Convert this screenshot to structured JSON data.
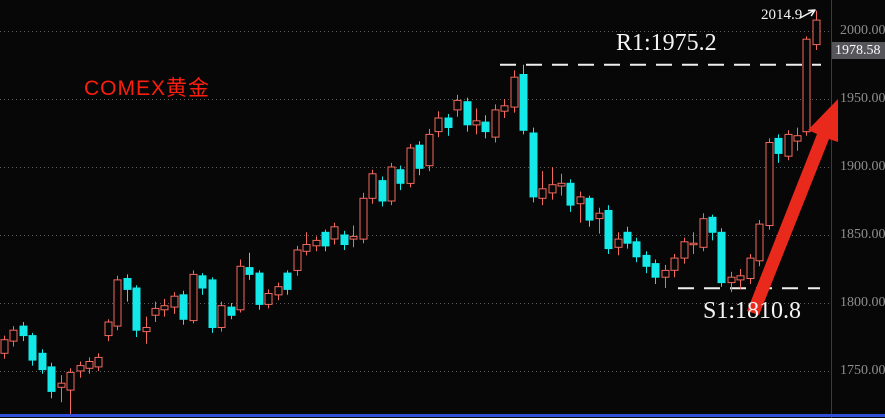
{
  "title": {
    "text": "COMEX黄金"
  },
  "axis": {
    "labels": [
      {
        "text": "2000.00",
        "value": 2000
      },
      {
        "text": "1950.00",
        "value": 1950
      },
      {
        "text": "1900.00",
        "value": 1900
      },
      {
        "text": "1850.00",
        "value": 1850
      },
      {
        "text": "1800.00",
        "value": 1800
      },
      {
        "text": "1750.00",
        "value": 1750
      }
    ],
    "current_price": {
      "text": "1978.58",
      "value": 1978.58
    }
  },
  "annotations": {
    "resistance": {
      "label": "R1:1975.2",
      "value": 1975.2
    },
    "support": {
      "label": "S1:1810.8",
      "value": 1810.8
    },
    "peak": {
      "label": "2014.9",
      "value": 2014.9
    }
  },
  "colors": {
    "background": "#070707",
    "grid": "#5e5e5e",
    "axis_border": "#3a3a3a",
    "axis_text": "#8e8e8e",
    "badge_bg": "#56565a",
    "annotation_text": "#f2f2f2",
    "dashed_level": "#efefef",
    "title_red": "#fb1d0e",
    "arrow_red": "#e8291c",
    "bottom_bar_blue": "#3550d8"
  },
  "chart_data": {
    "type": "candlestick",
    "title": "COMEX黄金",
    "up_color": "#f4685e",
    "down_color": "#14e9e9",
    "ylim": [
      1715,
      2023
    ],
    "y_ticks": [
      2000,
      1950,
      1900,
      1850,
      1800,
      1750
    ],
    "levels": {
      "R1": 1975.2,
      "S1": 1810.8,
      "last_high": 2014.9,
      "last_price": 1978.58
    },
    "candles_format": [
      "open",
      "close",
      "low",
      "high"
    ],
    "candles": [
      [
        1763,
        1773,
        1759,
        1776
      ],
      [
        1772,
        1780,
        1768,
        1783
      ],
      [
        1783,
        1776,
        1772,
        1786
      ],
      [
        1776,
        1758,
        1754,
        1778
      ],
      [
        1763,
        1751,
        1748,
        1766
      ],
      [
        1753,
        1735,
        1730,
        1756
      ],
      [
        1738,
        1741,
        1727,
        1747
      ],
      [
        1736,
        1749,
        1718,
        1752
      ],
      [
        1750,
        1754,
        1745,
        1757
      ],
      [
        1752,
        1757,
        1748,
        1760
      ],
      [
        1753,
        1760,
        1750,
        1763
      ],
      [
        1776,
        1786,
        1772,
        1788
      ],
      [
        1783,
        1817,
        1780,
        1820
      ],
      [
        1818,
        1810,
        1801,
        1821
      ],
      [
        1811,
        1780,
        1775,
        1813
      ],
      [
        1779,
        1782,
        1770,
        1790
      ],
      [
        1791,
        1796,
        1786,
        1801
      ],
      [
        1795,
        1798,
        1790,
        1803
      ],
      [
        1797,
        1805,
        1792,
        1808
      ],
      [
        1806,
        1788,
        1784,
        1809
      ],
      [
        1787,
        1821,
        1785,
        1824
      ],
      [
        1820,
        1811,
        1806,
        1822
      ],
      [
        1817,
        1782,
        1778,
        1819
      ],
      [
        1782,
        1798,
        1779,
        1801
      ],
      [
        1797,
        1791,
        1788,
        1800
      ],
      [
        1795,
        1827,
        1793,
        1832
      ],
      [
        1826,
        1821,
        1817,
        1837
      ],
      [
        1822,
        1799,
        1795,
        1824
      ],
      [
        1799,
        1807,
        1796,
        1810
      ],
      [
        1806,
        1812,
        1802,
        1815
      ],
      [
        1822,
        1810,
        1806,
        1824
      ],
      [
        1824,
        1839,
        1820,
        1842
      ],
      [
        1838,
        1843,
        1835,
        1852
      ],
      [
        1842,
        1846,
        1838,
        1849
      ],
      [
        1852,
        1842,
        1838,
        1854
      ],
      [
        1847,
        1856,
        1843,
        1859
      ],
      [
        1850,
        1843,
        1839,
        1853
      ],
      [
        1847,
        1849,
        1841,
        1857
      ],
      [
        1847,
        1877,
        1844,
        1881
      ],
      [
        1877,
        1895,
        1873,
        1898
      ],
      [
        1890,
        1875,
        1871,
        1893
      ],
      [
        1875,
        1900,
        1872,
        1903
      ],
      [
        1898,
        1888,
        1883,
        1901
      ],
      [
        1888,
        1914,
        1885,
        1917
      ],
      [
        1916,
        1899,
        1894,
        1919
      ],
      [
        1901,
        1924,
        1897,
        1928
      ],
      [
        1926,
        1936,
        1922,
        1941
      ],
      [
        1936,
        1929,
        1923,
        1939
      ],
      [
        1942,
        1949,
        1937,
        1953
      ],
      [
        1948,
        1931,
        1926,
        1951
      ],
      [
        1931,
        1934,
        1924,
        1943
      ],
      [
        1933,
        1926,
        1921,
        1938
      ],
      [
        1922,
        1942,
        1918,
        1946
      ],
      [
        1941,
        1945,
        1936,
        1950
      ],
      [
        1944,
        1966,
        1940,
        1971
      ],
      [
        1968,
        1927,
        1924,
        1975.2
      ],
      [
        1925,
        1878,
        1874,
        1929
      ],
      [
        1877,
        1884,
        1872,
        1897
      ],
      [
        1881,
        1887,
        1876,
        1900
      ],
      [
        1886,
        1888,
        1879,
        1895
      ],
      [
        1888,
        1872,
        1867,
        1891
      ],
      [
        1873,
        1878,
        1859,
        1882
      ],
      [
        1877,
        1861,
        1856,
        1879
      ],
      [
        1862,
        1866,
        1851,
        1870
      ],
      [
        1868,
        1840,
        1836,
        1872
      ],
      [
        1841,
        1847,
        1835,
        1852
      ],
      [
        1852,
        1844,
        1840,
        1856
      ],
      [
        1845,
        1834,
        1830,
        1848
      ],
      [
        1835,
        1827,
        1822,
        1838
      ],
      [
        1829,
        1819,
        1814,
        1832
      ],
      [
        1819,
        1824,
        1811,
        1828
      ],
      [
        1824,
        1833,
        1819,
        1836
      ],
      [
        1833,
        1845,
        1829,
        1848
      ],
      [
        1843,
        1844,
        1836,
        1852
      ],
      [
        1841,
        1862,
        1838,
        1866
      ],
      [
        1863,
        1852,
        1846,
        1865
      ],
      [
        1852,
        1815,
        1812,
        1855
      ],
      [
        1815,
        1819,
        1808,
        1823
      ],
      [
        1817,
        1820,
        1810,
        1825
      ],
      [
        1818,
        1833,
        1814,
        1836
      ],
      [
        1831,
        1858,
        1827,
        1861
      ],
      [
        1857,
        1918,
        1854,
        1921
      ],
      [
        1921,
        1910,
        1903,
        1924
      ],
      [
        1908,
        1924,
        1905,
        1927
      ],
      [
        1919,
        1923,
        1912,
        1929
      ],
      [
        1926,
        1994,
        1923,
        1996
      ],
      [
        1990,
        2008,
        1986,
        2014.9
      ]
    ]
  }
}
